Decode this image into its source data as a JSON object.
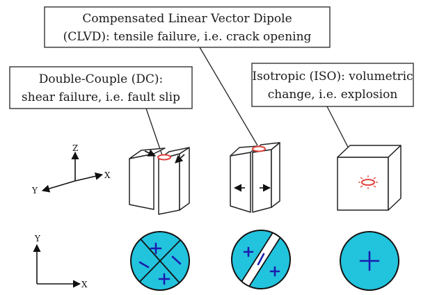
{
  "colors": {
    "compression_fill": "#22c3dd",
    "tension_fill": "#ffffff",
    "sign_color": "#1c1cb0",
    "source_marker": "#e0403a",
    "line": "#222222"
  },
  "callouts": {
    "clvd": {
      "line1": "Compensated Linear Vector Dipole",
      "line2": "(CLVD): tensile failure, i.e. crack opening"
    },
    "dc": {
      "line1": "Double-Couple (DC):",
      "line2": "shear failure, i.e. fault slip"
    },
    "iso": {
      "line1": "Isotropic (ISO): volumetric",
      "line2": "change, i.e. explosion"
    }
  },
  "axes_3d": {
    "z": "Z",
    "y": "Y",
    "x": "X"
  },
  "axes_2d": {
    "y": "Y",
    "x": "X"
  },
  "beachballs": {
    "dc": {
      "signs": [
        "+",
        "−",
        "−",
        "+"
      ]
    },
    "clvd": {
      "signs": [
        "+",
        "−",
        "+"
      ]
    },
    "iso": {
      "signs": [
        "+"
      ]
    }
  }
}
